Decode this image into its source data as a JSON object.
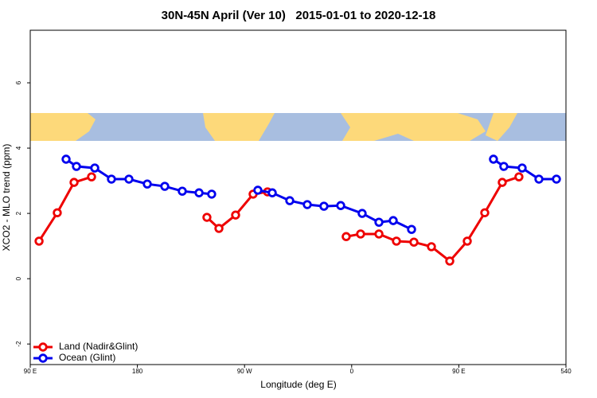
{
  "chart_data": {
    "type": "line",
    "title": "30N-45N April (Ver 10)   2015-01-01 to 2020-12-18",
    "xlabel": "Longitude (deg E)",
    "ylabel": "XCO2 - MLO trend (ppm)",
    "xlim": [
      90,
      540
    ],
    "xticks": [
      {
        "value": 90,
        "label": "90 E"
      },
      180,
      {
        "value": 270,
        "label": "90 W"
      },
      {
        "value": 360,
        "label": "0"
      },
      {
        "value": 450,
        "label": "90 E"
      },
      540
    ],
    "ylim": [
      -2.63,
      7.61
    ],
    "yticks": [
      -2,
      0,
      2,
      4,
      6
    ],
    "legend": "bottom-left",
    "series": [
      {
        "name": "Land (Nadir&Glint)",
        "color": "#ee0000",
        "x": [
          97.4,
          112.7,
          126.8,
          141.5,
          null,
          238.4,
          248.5,
          262.5,
          277.2,
          289.3,
          null,
          355.4,
          367.5,
          382.9,
          397.6,
          412.3,
          427,
          442.4,
          457.1,
          471.8,
          486.5,
          500.5
        ],
        "values": [
          1.15,
          2.02,
          2.95,
          3.12,
          null,
          1.88,
          1.54,
          1.95,
          2.59,
          2.66,
          null,
          1.29,
          1.37,
          1.37,
          1.15,
          1.12,
          0.98,
          0.54,
          1.15,
          2.02,
          2.95,
          3.12
        ]
      },
      {
        "name": "Ocean (Glint)",
        "color": "#0000ee",
        "x": [
          120.1,
          128.8,
          144.2,
          158.2,
          172.9,
          188.3,
          203,
          217.7,
          231.8,
          242.4,
          null,
          281.2,
          293.3,
          308,
          322.7,
          336.7,
          350.8,
          368.8,
          382.9,
          394.9,
          410.3,
          null,
          479.1,
          487.8,
          503.2,
          517.3,
          532
        ],
        "values": [
          3.66,
          3.44,
          3.39,
          3.05,
          3.05,
          2.9,
          2.83,
          2.68,
          2.63,
          2.59,
          null,
          2.71,
          2.63,
          2.39,
          2.27,
          2.22,
          2.24,
          2.0,
          1.73,
          1.78,
          1.51,
          null,
          3.66,
          3.44,
          3.39,
          3.05,
          3.05
        ]
      }
    ]
  }
}
